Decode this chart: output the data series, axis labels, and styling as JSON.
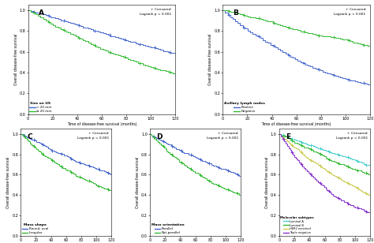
{
  "panels": [
    {
      "label": "A",
      "legend_title": "Size on US",
      "lines": [
        {
          "label": "< 20 mm",
          "color": "#4466cc",
          "decay": 0.0038,
          "final": 0.62
        },
        {
          "label": "≥ 20 mm",
          "color": "#33bb33",
          "decay": 0.0072,
          "final": 0.38
        }
      ],
      "pvalue": "Logrank p < 0.001",
      "ylabel": "Overall disease-free survival",
      "xlabel": "Time of disease-free survival (months)"
    },
    {
      "label": "B",
      "legend_title": "Axillary lymph nodes",
      "lines": [
        {
          "label": "Positive",
          "color": "#4466cc",
          "decay": 0.011,
          "final": 0.31
        },
        {
          "label": "Negative",
          "color": "#33bb33",
          "decay": 0.0032,
          "final": 0.68
        }
      ],
      "pvalue": "Logrank p < 0.001",
      "ylabel": "Overall disease-free survival",
      "xlabel": "Time of disease-free survival (months)"
    },
    {
      "label": "C",
      "legend_title": "Mass shape",
      "lines": [
        {
          "label": "Round, oval",
          "color": "#4466cc",
          "decay": 0.0042,
          "final": 0.6
        },
        {
          "label": "Irregular",
          "color": "#33bb33",
          "decay": 0.0075,
          "final": 0.42
        }
      ],
      "pvalue": "Logrank p < 0.001",
      "ylabel": "Overall disease-free survival",
      "xlabel": "Time of disease-free survival (months)"
    },
    {
      "label": "D",
      "legend_title": "Mass orientation",
      "lines": [
        {
          "label": "Parallel",
          "color": "#4466cc",
          "decay": 0.0045,
          "final": 0.58
        },
        {
          "label": "Not-parallel",
          "color": "#33bb33",
          "decay": 0.0075,
          "final": 0.41
        }
      ],
      "pvalue": "Logrank p < 0.001",
      "ylabel": "Overall disease-free survival",
      "xlabel": "Time of disease-free survival (months)"
    },
    {
      "label": "E",
      "legend_title": "Molecular subtypes",
      "lines": [
        {
          "label": "Luminal A",
          "color": "#44cccc",
          "decay": 0.0028,
          "final": 0.7
        },
        {
          "label": "Luminal B",
          "color": "#33bb33",
          "decay": 0.0042,
          "final": 0.58
        },
        {
          "label": "HER2 enriched",
          "color": "#cccc55",
          "decay": 0.0065,
          "final": 0.4
        },
        {
          "label": "Triple negative",
          "color": "#8833cc",
          "decay": 0.013,
          "final": 0.22
        }
      ],
      "pvalue": "Logrank p < 0.001",
      "ylabel": "Overall disease-free survival",
      "xlabel": "Time of disease-free survival (months)"
    }
  ],
  "xlim": [
    0,
    120
  ],
  "ylim": [
    0.0,
    1.05
  ],
  "yticks": [
    0.0,
    0.2,
    0.4,
    0.6,
    0.8,
    1.0
  ],
  "xticks": [
    0,
    20,
    40,
    60,
    80,
    100,
    120
  ],
  "background_color": "#ffffff",
  "fig_background": "#ffffff"
}
